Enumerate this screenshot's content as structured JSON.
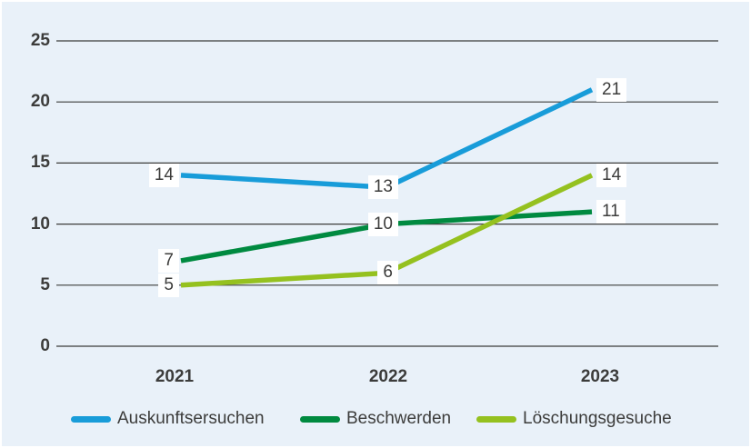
{
  "chart_data": {
    "type": "line",
    "title": "",
    "xlabel": "",
    "ylabel": "",
    "categories": [
      "2021",
      "2022",
      "2023"
    ],
    "series": [
      {
        "name": "Auskunftsersuchen",
        "color": "#189cd9",
        "values": [
          14,
          13,
          21
        ]
      },
      {
        "name": "Beschwerden",
        "color": "#008a40",
        "values": [
          7,
          10,
          11
        ]
      },
      {
        "name": "Löschungsgesuche",
        "color": "#95c11f",
        "values": [
          5,
          6,
          14
        ]
      }
    ],
    "ylim": [
      0,
      25
    ],
    "yticks": [
      0,
      5,
      10,
      15,
      20,
      25
    ],
    "grid": true,
    "data_labels": true,
    "legend_position": "bottom"
  },
  "colors": {
    "background": "#e9f1f9",
    "gridline": "#3c3c3b",
    "text": "#3c3c3b",
    "label_background": "#ffffff"
  }
}
